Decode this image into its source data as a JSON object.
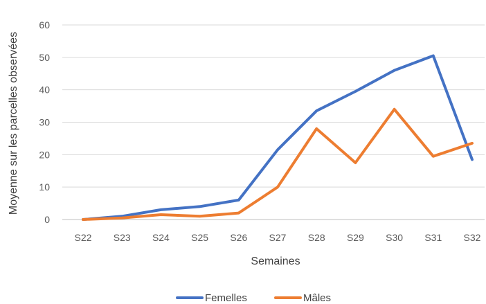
{
  "chart_data": {
    "type": "line",
    "title": "",
    "xlabel": "Semaines",
    "ylabel": "Moyenne sur les parcelles observées",
    "categories": [
      "S22",
      "S23",
      "S24",
      "S25",
      "S26",
      "S27",
      "S28",
      "S29",
      "S30",
      "S31",
      "S32"
    ],
    "ylim": [
      0,
      60
    ],
    "yticks": [
      0,
      10,
      20,
      30,
      40,
      50,
      60
    ],
    "grid": true,
    "legend_position": "bottom",
    "series": [
      {
        "name": "Femelles",
        "color": "#4472C4",
        "values": [
          0,
          1,
          3,
          4,
          6,
          21.5,
          33.5,
          39.5,
          46,
          50.5,
          18.5
        ]
      },
      {
        "name": "Mâles",
        "color": "#ED7D31",
        "values": [
          0,
          0.5,
          1.5,
          1,
          2,
          10,
          28,
          17.5,
          34,
          19.5,
          23.5
        ]
      }
    ]
  }
}
